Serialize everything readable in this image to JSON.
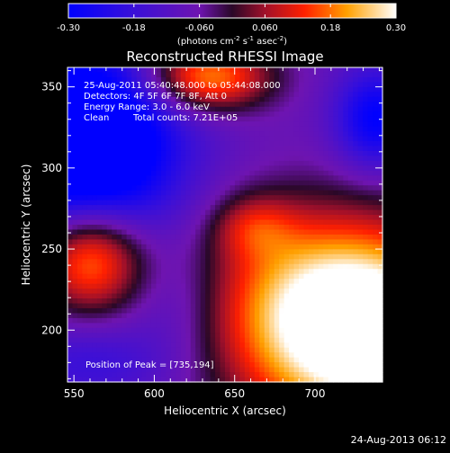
{
  "chart_data": {
    "type": "heatmap",
    "title": "Reconstructed RHESSI Image",
    "xlabel": "Heliocentric X (arcsec)",
    "ylabel": "Heliocentric Y (arcsec)",
    "xlim": [
      546,
      742
    ],
    "ylim": [
      168,
      362
    ],
    "x_ticks": [
      550,
      600,
      650,
      700
    ],
    "y_ticks": [
      200,
      250,
      300,
      350
    ],
    "colorbar": {
      "range": [
        -0.3,
        0.3
      ],
      "tick_values": [
        -0.3,
        -0.18,
        -0.06,
        0.06,
        0.18,
        0.3
      ],
      "tick_labels": [
        "-0.30",
        "-0.18",
        "-0.060",
        "0.060",
        "0.18",
        "0.30"
      ],
      "stops": [
        {
          "v": 0.0,
          "color": "#0000ff"
        },
        {
          "v": 0.2,
          "color": "#3a10d8"
        },
        {
          "v": 0.4,
          "color": "#6e14b0"
        },
        {
          "v": 0.5,
          "color": "#2a0828"
        },
        {
          "v": 0.6,
          "color": "#a0102a"
        },
        {
          "v": 0.72,
          "color": "#ff2000"
        },
        {
          "v": 0.85,
          "color": "#ffa000"
        },
        {
          "v": 1.0,
          "color": "#ffffff"
        }
      ]
    },
    "grid": false,
    "annotations": {
      "time": "25-Aug-2011 05:40:48.000 to 05:44:08.000",
      "detectors": "Detectors: 4F 5F 6F 7F 8F, Att 0",
      "energy": "Energy Range: 3.0 - 6.0 keV",
      "clean": "Clean",
      "counts": "Total counts: 7.21E+05",
      "peak": "Position of Peak = [735,194]"
    },
    "field": {
      "description": "smooth intensity map; values in colorbar units",
      "sources": [
        {
          "x": 735,
          "y": 194,
          "amp": 0.42,
          "sx": 55,
          "sy": 42
        },
        {
          "x": 700,
          "y": 225,
          "amp": 0.18,
          "sx": 50,
          "sy": 40
        },
        {
          "x": 560,
          "y": 245,
          "amp": 0.32,
          "sx": 24,
          "sy": 24
        },
        {
          "x": 632,
          "y": 356,
          "amp": 0.3,
          "sx": 28,
          "sy": 15
        },
        {
          "x": 662,
          "y": 264,
          "amp": 0.12,
          "sx": 18,
          "sy": 14
        },
        {
          "x": 558,
          "y": 315,
          "amp": -0.4,
          "sx": 40,
          "sy": 42
        },
        {
          "x": 738,
          "y": 330,
          "amp": -0.22,
          "sx": 18,
          "sy": 22
        },
        {
          "x": 562,
          "y": 180,
          "amp": -0.1,
          "sx": 40,
          "sy": 18
        },
        {
          "x": 615,
          "y": 215,
          "amp": -0.06,
          "sx": 22,
          "sy": 22
        }
      ],
      "baseline": -0.085
    }
  },
  "colorbar_unit_label": "(photons cm",
  "colorbar_unit_sup1": "-2",
  "colorbar_unit_mid": " s",
  "colorbar_unit_sup2": "-1",
  "colorbar_unit_end": " asec",
  "colorbar_unit_sup3": "-2",
  "colorbar_unit_close": ")",
  "footer_timestamp": "24-Aug-2013 06:12"
}
